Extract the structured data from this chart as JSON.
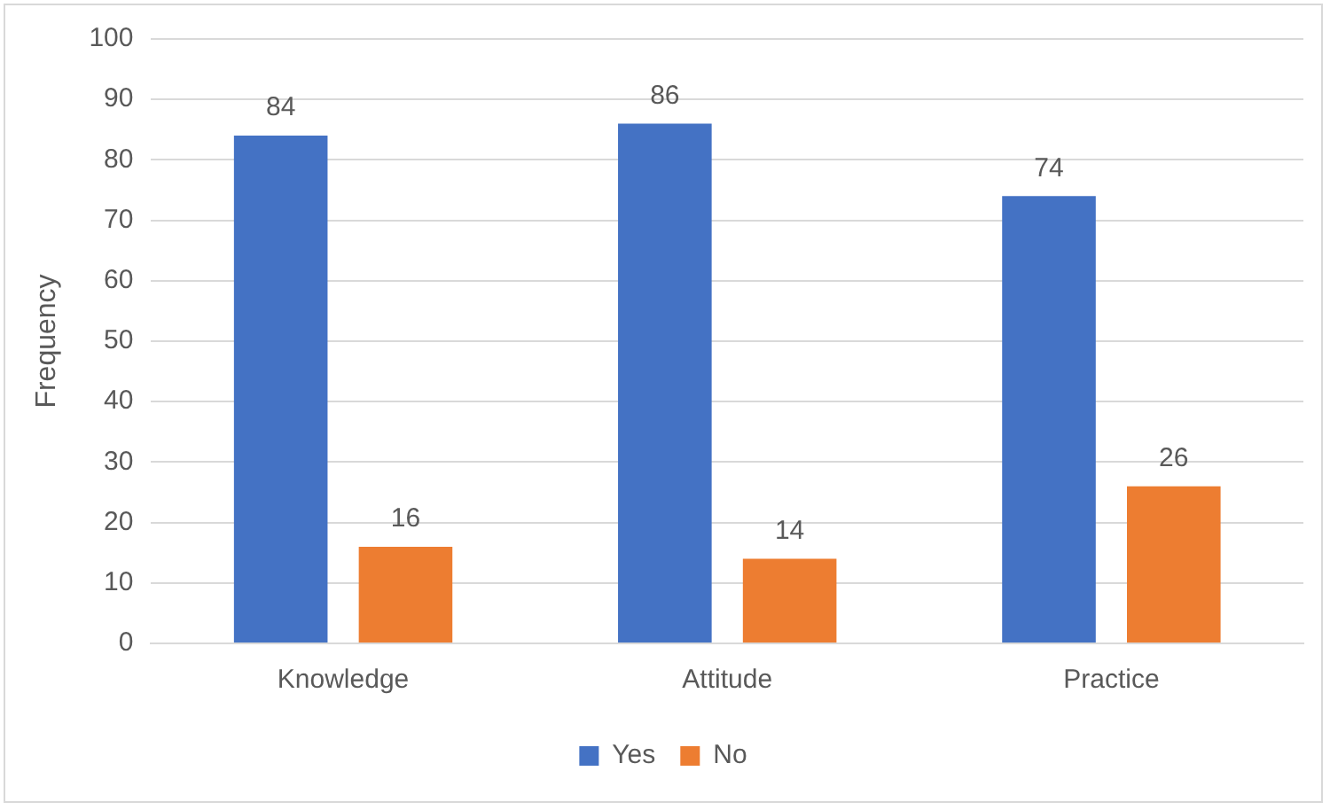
{
  "chart_data": {
    "type": "bar",
    "ylabel": "Frequency",
    "categories": [
      "Knowledge",
      "Attitude",
      "Practice"
    ],
    "series": [
      {
        "name": "Yes",
        "color": "#4472c4",
        "values": [
          84,
          86,
          74
        ]
      },
      {
        "name": "No",
        "color": "#ed7d31",
        "values": [
          16,
          14,
          26
        ]
      }
    ],
    "ylim": [
      0,
      100
    ],
    "yticks": [
      0,
      10,
      20,
      30,
      40,
      50,
      60,
      70,
      80,
      90,
      100
    ],
    "grid": "y",
    "legend": "bottom",
    "data_labels": true
  }
}
